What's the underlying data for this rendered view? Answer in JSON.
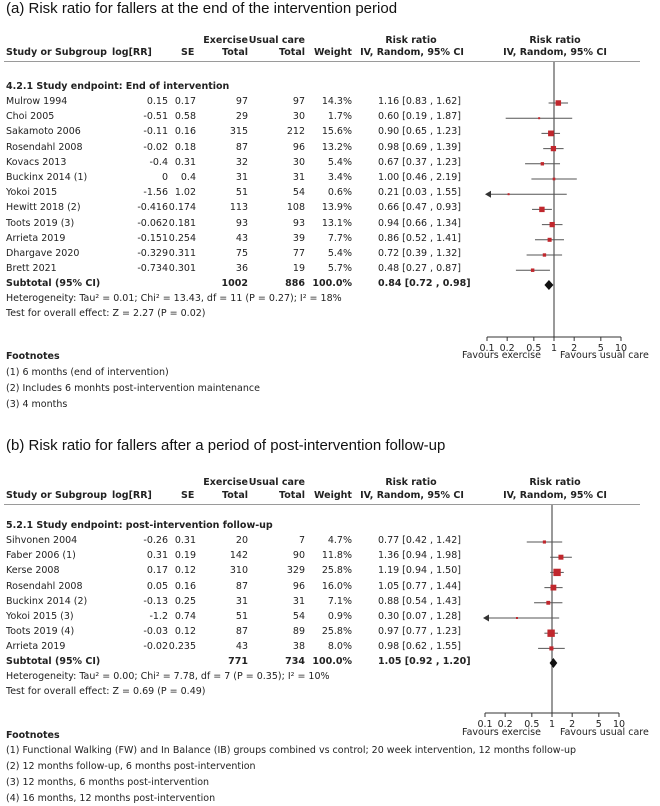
{
  "colors": {
    "marker": "#c0272d",
    "line": "#555555",
    "axis": "#333333",
    "text": "#222222"
  },
  "icons": {
    "pooled": "diamond-icon",
    "offscale": "arrow-left-icon"
  },
  "headers": {
    "study": "Study or Subgroup",
    "logrr": "log[RR]",
    "se": "SE",
    "exercise_top": "Exercise",
    "exercise_bottom": "Total",
    "usual_top": "Usual care",
    "usual_bottom": "Total",
    "weight": "Weight",
    "rr_top": "Risk ratio",
    "rr_bottom": "IV, Random, 95% CI",
    "plot_top": "Risk ratio",
    "plot_bottom": "IV, Random, 95% CI"
  },
  "panel_a": {
    "title": "(a)  Risk ratio for fallers at the end of the intervention period",
    "subgroup": "4.2.1 Study endpoint: End of intervention",
    "rows": [
      {
        "study": "Mulrow 1994",
        "logrr": "0.15",
        "se": "0.17",
        "ex": "97",
        "uc": "97",
        "weight": "14.3%",
        "ci": "1.16 [0.83 , 1.62]"
      },
      {
        "study": "Choi 2005",
        "logrr": "-0.51",
        "se": "0.58",
        "ex": "29",
        "uc": "30",
        "weight": "1.7%",
        "ci": "0.60 [0.19 , 1.87]"
      },
      {
        "study": "Sakamoto 2006",
        "logrr": "-0.11",
        "se": "0.16",
        "ex": "315",
        "uc": "212",
        "weight": "15.6%",
        "ci": "0.90 [0.65 , 1.23]"
      },
      {
        "study": "Rosendahl 2008",
        "logrr": "-0.02",
        "se": "0.18",
        "ex": "87",
        "uc": "96",
        "weight": "13.2%",
        "ci": "0.98 [0.69 , 1.39]"
      },
      {
        "study": "Kovacs 2013",
        "logrr": "-0.4",
        "se": "0.31",
        "ex": "32",
        "uc": "30",
        "weight": "5.4%",
        "ci": "0.67 [0.37 , 1.23]"
      },
      {
        "study": "Buckinx 2014 (1)",
        "logrr": "0",
        "se": "0.4",
        "ex": "31",
        "uc": "31",
        "weight": "3.4%",
        "ci": "1.00 [0.46 , 2.19]"
      },
      {
        "study": "Yokoi 2015",
        "logrr": "-1.56",
        "se": "1.02",
        "ex": "51",
        "uc": "54",
        "weight": "0.6%",
        "ci": "0.21 [0.03 , 1.55]"
      },
      {
        "study": "Hewitt 2018 (2)",
        "logrr": "-0.416",
        "se": "0.174",
        "ex": "113",
        "uc": "108",
        "weight": "13.9%",
        "ci": "0.66 [0.47 , 0.93]"
      },
      {
        "study": "Toots 2019 (3)",
        "logrr": "-0.062",
        "se": "0.181",
        "ex": "93",
        "uc": "93",
        "weight": "13.1%",
        "ci": "0.94 [0.66 , 1.34]"
      },
      {
        "study": "Arrieta 2019",
        "logrr": "-0.151",
        "se": "0.254",
        "ex": "43",
        "uc": "39",
        "weight": "7.7%",
        "ci": "0.86 [0.52 , 1.41]"
      },
      {
        "study": "Dhargave 2020",
        "logrr": "-0.329",
        "se": "0.311",
        "ex": "75",
        "uc": "77",
        "weight": "5.4%",
        "ci": "0.72 [0.39 , 1.32]"
      },
      {
        "study": "Brett 2021",
        "logrr": "-0.734",
        "se": "0.301",
        "ex": "36",
        "uc": "19",
        "weight": "5.7%",
        "ci": "0.48 [0.27 , 0.87]"
      }
    ],
    "subtotal": {
      "label": "Subtotal (95% CI)",
      "ex": "1002",
      "uc": "886",
      "weight": "100.0%",
      "ci": "0.84 [0.72 , 0.98]"
    },
    "heterogeneity": "Heterogeneity: Tau² = 0.01; Chi² = 13.43, df = 11 (P = 0.27); I² = 18%",
    "overall": "Test for overall effect: Z = 2.27 (P = 0.02)",
    "favours_left": "Favours exercise",
    "favours_right": "Favours usual care",
    "footnotes_title": "Footnotes",
    "footnotes": [
      "(1) 6 months (end of intervention)",
      "(2) Includes 6 monhts post-intervention maintenance",
      "(3) 4 months"
    ]
  },
  "panel_b": {
    "title": "(b)  Risk ratio for fallers after a period of post-intervention follow-up",
    "subgroup": "5.2.1 Study endpoint: post-intervention follow-up",
    "rows": [
      {
        "study": "Sihvonen 2004",
        "logrr": "-0.26",
        "se": "0.31",
        "ex": "20",
        "uc": "7",
        "weight": "4.7%",
        "ci": "0.77 [0.42 , 1.42]"
      },
      {
        "study": "Faber 2006 (1)",
        "logrr": "0.31",
        "se": "0.19",
        "ex": "142",
        "uc": "90",
        "weight": "11.8%",
        "ci": "1.36 [0.94 , 1.98]"
      },
      {
        "study": "Kerse 2008",
        "logrr": "0.17",
        "se": "0.12",
        "ex": "310",
        "uc": "329",
        "weight": "25.8%",
        "ci": "1.19 [0.94 , 1.50]"
      },
      {
        "study": "Rosendahl 2008",
        "logrr": "0.05",
        "se": "0.16",
        "ex": "87",
        "uc": "96",
        "weight": "16.0%",
        "ci": "1.05 [0.77 , 1.44]"
      },
      {
        "study": "Buckinx 2014 (2)",
        "logrr": "-0.13",
        "se": "0.25",
        "ex": "31",
        "uc": "31",
        "weight": "7.1%",
        "ci": "0.88 [0.54 , 1.43]"
      },
      {
        "study": "Yokoi 2015 (3)",
        "logrr": "-1.2",
        "se": "0.74",
        "ex": "51",
        "uc": "54",
        "weight": "0.9%",
        "ci": "0.30 [0.07 , 1.28]"
      },
      {
        "study": "Toots 2019 (4)",
        "logrr": "-0.03",
        "se": "0.12",
        "ex": "87",
        "uc": "89",
        "weight": "25.8%",
        "ci": "0.97 [0.77 , 1.23]"
      },
      {
        "study": "Arrieta 2019",
        "logrr": "-0.02",
        "se": "0.235",
        "ex": "43",
        "uc": "38",
        "weight": "8.0%",
        "ci": "0.98 [0.62 , 1.55]"
      }
    ],
    "subtotal": {
      "label": "Subtotal (95% CI)",
      "ex": "771",
      "uc": "734",
      "weight": "100.0%",
      "ci": "1.05 [0.92 , 1.20]"
    },
    "heterogeneity": "Heterogeneity: Tau² = 0.00; Chi² = 7.78, df = 7 (P = 0.35); I² = 10%",
    "overall": "Test for overall effect: Z = 0.69 (P = 0.49)",
    "favours_left": "Favours exercise",
    "favours_right": "Favours usual care",
    "footnotes_title": "Footnotes",
    "footnotes": [
      "(1) Functional Walking (FW) and In Balance (IB) groups combined vs control; 20 week intervention, 12 months follow-up",
      "(2) 12 months follow-up, 6 months post-intervention",
      "(3) 12 months, 6 months post-intervention",
      "(4) 16 months, 12 months post-intervention"
    ]
  },
  "chart_data": [
    {
      "type": "scatter",
      "subtype": "forest",
      "title": "(a)  Risk ratio for fallers at the end of the intervention period",
      "xscale": "log",
      "xlim": [
        0.1,
        10
      ],
      "xticks": [
        0.1,
        0.2,
        0.5,
        1,
        2,
        5,
        10
      ],
      "xtick_labels": [
        "0.1",
        "0.2",
        "0.5",
        "1",
        "2",
        "5",
        "10"
      ],
      "null_line": 1,
      "points": [
        {
          "label": "Mulrow 1994",
          "rr": 1.16,
          "lo": 0.83,
          "hi": 1.62,
          "weight": 14.3
        },
        {
          "label": "Choi 2005",
          "rr": 0.6,
          "lo": 0.19,
          "hi": 1.87,
          "weight": 1.7
        },
        {
          "label": "Sakamoto 2006",
          "rr": 0.9,
          "lo": 0.65,
          "hi": 1.23,
          "weight": 15.6
        },
        {
          "label": "Rosendahl 2008",
          "rr": 0.98,
          "lo": 0.69,
          "hi": 1.39,
          "weight": 13.2
        },
        {
          "label": "Kovacs 2013",
          "rr": 0.67,
          "lo": 0.37,
          "hi": 1.23,
          "weight": 5.4
        },
        {
          "label": "Buckinx 2014 (1)",
          "rr": 1.0,
          "lo": 0.46,
          "hi": 2.19,
          "weight": 3.4
        },
        {
          "label": "Yokoi 2015",
          "rr": 0.21,
          "lo": 0.03,
          "hi": 1.55,
          "weight": 0.6
        },
        {
          "label": "Hewitt 2018 (2)",
          "rr": 0.66,
          "lo": 0.47,
          "hi": 0.93,
          "weight": 13.9
        },
        {
          "label": "Toots 2019 (3)",
          "rr": 0.94,
          "lo": 0.66,
          "hi": 1.34,
          "weight": 13.1
        },
        {
          "label": "Arrieta 2019",
          "rr": 0.86,
          "lo": 0.52,
          "hi": 1.41,
          "weight": 7.7
        },
        {
          "label": "Dhargave 2020",
          "rr": 0.72,
          "lo": 0.39,
          "hi": 1.32,
          "weight": 5.4
        },
        {
          "label": "Brett 2021",
          "rr": 0.48,
          "lo": 0.27,
          "hi": 0.87,
          "weight": 5.7
        }
      ],
      "pooled": {
        "label": "Subtotal (95% CI)",
        "rr": 0.84,
        "lo": 0.72,
        "hi": 0.98
      },
      "xlabel_left": "Favours exercise",
      "xlabel_right": "Favours usual care"
    },
    {
      "type": "scatter",
      "subtype": "forest",
      "title": "(b)  Risk ratio for fallers after a period of post-intervention follow-up",
      "xscale": "log",
      "xlim": [
        0.1,
        10
      ],
      "xticks": [
        0.1,
        0.2,
        0.5,
        1,
        2,
        5,
        10
      ],
      "xtick_labels": [
        "0.1",
        "0.2",
        "0.5",
        "1",
        "2",
        "5",
        "10"
      ],
      "null_line": 1,
      "points": [
        {
          "label": "Sihvonen 2004",
          "rr": 0.77,
          "lo": 0.42,
          "hi": 1.42,
          "weight": 4.7
        },
        {
          "label": "Faber 2006 (1)",
          "rr": 1.36,
          "lo": 0.94,
          "hi": 1.98,
          "weight": 11.8
        },
        {
          "label": "Kerse 2008",
          "rr": 1.19,
          "lo": 0.94,
          "hi": 1.5,
          "weight": 25.8
        },
        {
          "label": "Rosendahl 2008",
          "rr": 1.05,
          "lo": 0.77,
          "hi": 1.44,
          "weight": 16.0
        },
        {
          "label": "Buckinx 2014 (2)",
          "rr": 0.88,
          "lo": 0.54,
          "hi": 1.43,
          "weight": 7.1
        },
        {
          "label": "Yokoi 2015 (3)",
          "rr": 0.3,
          "lo": 0.07,
          "hi": 1.28,
          "weight": 0.9
        },
        {
          "label": "Toots 2019 (4)",
          "rr": 0.97,
          "lo": 0.77,
          "hi": 1.23,
          "weight": 25.8
        },
        {
          "label": "Arrieta 2019",
          "rr": 0.98,
          "lo": 0.62,
          "hi": 1.55,
          "weight": 8.0
        }
      ],
      "pooled": {
        "label": "Subtotal (95% CI)",
        "rr": 1.05,
        "lo": 0.92,
        "hi": 1.2
      },
      "xlabel_left": "Favours exercise",
      "xlabel_right": "Favours usual care"
    }
  ]
}
